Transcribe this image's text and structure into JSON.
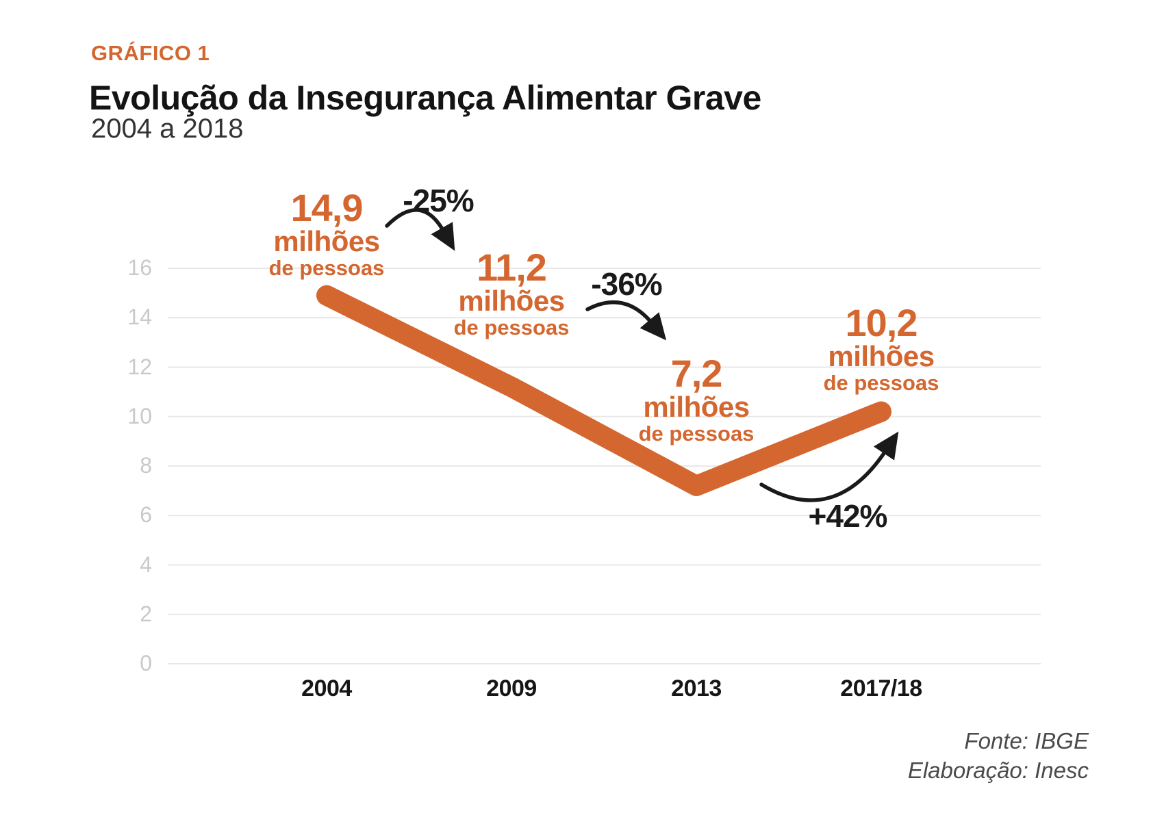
{
  "header": {
    "kicker": "GRÁFICO 1",
    "title": "Evolução da Insegurança Alimentar Grave",
    "subtitle": "2004 a 2018"
  },
  "footer": {
    "source": "Fonte: IBGE",
    "elaboration": "Elaboração: Inesc"
  },
  "colors": {
    "accent_orange": "#D4662F",
    "ink": "#1A1A1A",
    "grid_line": "#E8E8E8",
    "y_tick_label": "#C9C9C9",
    "x_tick_label": "#161616",
    "footer_text": "#4A4A4A"
  },
  "chart_data": {
    "type": "line",
    "title": "Evolução da Insegurança Alimentar Grave",
    "period": "2004 a 2018",
    "categories": [
      "2004",
      "2009",
      "2013",
      "2017/18"
    ],
    "series": [
      {
        "name": "Insegurança alimentar grave",
        "values": [
          14.9,
          11.2,
          7.2,
          10.2
        ]
      }
    ],
    "unit": "milhões de pessoas",
    "ylim": [
      0,
      16
    ],
    "yticks": [
      0,
      2,
      4,
      6,
      8,
      10,
      12,
      14,
      16
    ],
    "grid": true,
    "legend_position": "none",
    "point_labels": [
      {
        "value": "14,9",
        "unit_line1": "milhões",
        "unit_line2": "de pessoas"
      },
      {
        "value": "11,2",
        "unit_line1": "milhões",
        "unit_line2": "de pessoas"
      },
      {
        "value": "7,2",
        "unit_line1": "milhões",
        "unit_line2": "de pessoas"
      },
      {
        "value": "10,2",
        "unit_line1": "milhões",
        "unit_line2": "de pessoas"
      }
    ],
    "annotations": [
      {
        "label": "-25%",
        "from": "2004",
        "to": "2009"
      },
      {
        "label": "-36%",
        "from": "2009",
        "to": "2013"
      },
      {
        "label": "+42%",
        "from": "2013",
        "to": "2017/18"
      }
    ],
    "source": "Fonte: IBGE",
    "elaboration": "Elaboração: Inesc"
  }
}
